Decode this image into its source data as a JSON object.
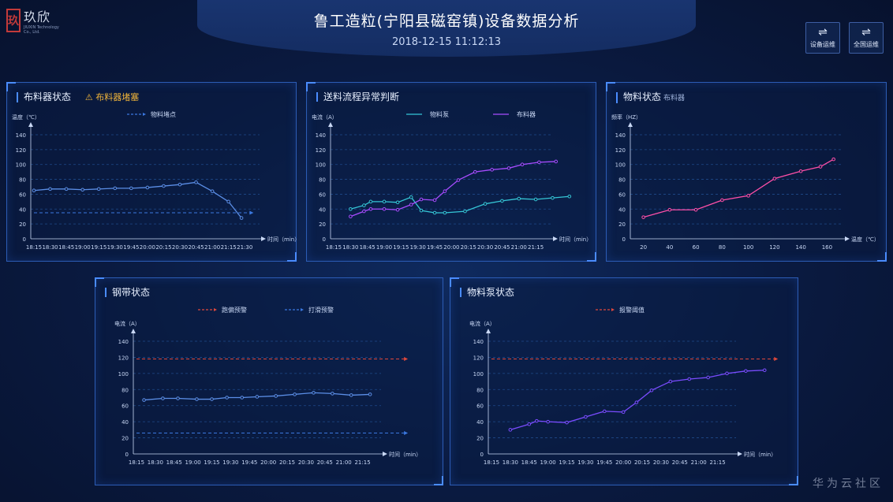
{
  "header": {
    "title": "鲁工造粒(宁阳县磁窑镇)设备数据分析",
    "datetime": "2018-12-15 11:12:13",
    "logo_name": "玖欣",
    "logo_sub": "JIUXIN Technology Co., Ltd."
  },
  "nav": {
    "device_ops": "设备运维",
    "national_ops": "全国运维",
    "swap_glyph": "⇌"
  },
  "panels": {
    "distributor": {
      "title": "布料器状态",
      "warning": "⚠ 布料器堵塞"
    },
    "feeding": {
      "title": "送料流程异常判断"
    },
    "material": {
      "title": "物料状态",
      "subtitle": "布料器"
    },
    "belt": {
      "title": "钢带状态"
    },
    "pump": {
      "title": "物料泵状态"
    }
  },
  "watermark": "华为云社区",
  "colors": {
    "cyan": "#35c6d6",
    "purple": "#a84cff",
    "pink": "#ff4fa8",
    "blue_line": "#5b8ee6",
    "red_dash": "#e0483c",
    "blue_dash": "#3b78e0",
    "grid": "#1f4a8a",
    "axis": "#c9d8f5"
  },
  "chart_data": [
    {
      "id": "distributor",
      "type": "line",
      "ylabel": "温度（℃）",
      "xlabel": "时间（min）",
      "ylim": [
        0,
        140
      ],
      "yticks": [
        0,
        20,
        40,
        60,
        80,
        100,
        120,
        140
      ],
      "categories": [
        "18:15",
        "18:30",
        "18:45",
        "19:00",
        "19:15",
        "19:30",
        "19:45",
        "20:00",
        "20:15",
        "20:30",
        "20:45",
        "21:00",
        "21:15",
        "21:30"
      ],
      "series": [
        {
          "name": "",
          "color": "#5b8ee6",
          "dashed": false,
          "x": [
            0,
            1,
            2,
            3,
            4,
            5,
            6,
            7,
            8,
            9,
            10,
            11,
            12,
            12.8
          ],
          "values": [
            65,
            67,
            67,
            66,
            67,
            68,
            68,
            69,
            71,
            73,
            76,
            64,
            50,
            28
          ]
        },
        {
          "name": "物料堵点",
          "color": "#3b78e0",
          "dashed": true,
          "x": [
            0,
            13.3
          ],
          "values": [
            35,
            35
          ]
        }
      ],
      "legend": [
        {
          "name": "物料堵点",
          "color": "#3b78e0",
          "dashed": true
        }
      ]
    },
    {
      "id": "feeding",
      "type": "line",
      "ylabel": "电流（A）",
      "xlabel": "时间（min）",
      "ylim": [
        0,
        140
      ],
      "yticks": [
        0,
        20,
        40,
        60,
        80,
        100,
        120,
        140
      ],
      "categories": [
        "18:15",
        "18:30",
        "18:45",
        "19:00",
        "19:15",
        "19:30",
        "19:45",
        "20:00",
        "20:15",
        "20:30",
        "20:45",
        "21:00",
        "21:15"
      ],
      "series": [
        {
          "name": "物料泵",
          "color": "#35c6d6",
          "x": [
            1,
            1.8,
            2.2,
            3,
            3.8,
            4.6,
            5.2,
            6,
            6.6,
            7.8,
            9,
            10,
            11,
            12,
            13,
            14
          ],
          "values": [
            40,
            45,
            50,
            50,
            49,
            56,
            38,
            35,
            35,
            37,
            47,
            51,
            54,
            53,
            55,
            57
          ]
        },
        {
          "name": "布料器",
          "color": "#a84cff",
          "x": [
            1,
            1.8,
            2.2,
            3,
            3.8,
            4.6,
            5.2,
            6,
            6.6,
            7.4,
            8.4,
            9.4,
            10.4,
            11.2,
            12.2,
            13.2
          ],
          "values": [
            30,
            37,
            40,
            40,
            39,
            46,
            53,
            52,
            64,
            79,
            90,
            93,
            95,
            100,
            103,
            104
          ]
        }
      ],
      "legend": [
        {
          "name": "物料泵",
          "color": "#35c6d6"
        },
        {
          "name": "布料器",
          "color": "#a84cff"
        }
      ]
    },
    {
      "id": "material",
      "type": "line",
      "ylabel": "频率（HZ）",
      "xlabel": "温度（℃）",
      "ylim": [
        0,
        140
      ],
      "yticks": [
        0,
        20,
        40,
        60,
        80,
        100,
        120,
        140
      ],
      "xlim": [
        10,
        170
      ],
      "xticks": [
        20,
        40,
        60,
        80,
        100,
        120,
        140,
        160
      ],
      "series": [
        {
          "name": "",
          "color": "#ff4fa8",
          "x": [
            20,
            40,
            60,
            80,
            100,
            120,
            140,
            155,
            165
          ],
          "values": [
            29,
            39,
            39,
            52,
            58,
            81,
            91,
            97,
            107
          ]
        }
      ]
    },
    {
      "id": "belt",
      "type": "line",
      "ylabel": "电流（A）",
      "xlabel": "时间（min）",
      "ylim": [
        0,
        140
      ],
      "yticks": [
        0,
        20,
        40,
        60,
        80,
        100,
        120,
        140
      ],
      "categories": [
        "18:15",
        "18:30",
        "18:45",
        "19:00",
        "19:15",
        "19:30",
        "19:45",
        "20:00",
        "20:15",
        "20:30",
        "20:45",
        "21:00",
        "21:15"
      ],
      "series": [
        {
          "name": "",
          "color": "#5b8ee6",
          "x": [
            0.4,
            1.4,
            2.2,
            3.2,
            4,
            4.8,
            5.6,
            6.4,
            7.4,
            8.4,
            9.4,
            10.4,
            11.4,
            12.4
          ],
          "values": [
            67,
            69,
            69,
            68,
            68,
            70,
            70,
            71,
            72,
            74,
            76,
            75,
            73,
            74
          ]
        },
        {
          "name": "跑偏预警",
          "color": "#e0483c",
          "dashed": true,
          "x": [
            0,
            14.2
          ],
          "values": [
            118,
            118
          ]
        },
        {
          "name": "打滑预警",
          "color": "#3b78e0",
          "dashed": true,
          "x": [
            0,
            14.2
          ],
          "values": [
            26,
            26
          ]
        }
      ],
      "legend": [
        {
          "name": "跑偏预警",
          "color": "#e0483c",
          "dashed": true
        },
        {
          "name": "打滑预警",
          "color": "#3b78e0",
          "dashed": true
        }
      ]
    },
    {
      "id": "pump",
      "type": "line",
      "ylabel": "电流（A）",
      "xlabel": "时间（min）",
      "ylim": [
        0,
        140
      ],
      "yticks": [
        0,
        20,
        40,
        60,
        80,
        100,
        120,
        140
      ],
      "categories": [
        "18:15",
        "18:30",
        "18:45",
        "19:00",
        "19:15",
        "19:30",
        "19:45",
        "20:00",
        "20:15",
        "20:30",
        "20:45",
        "21:00",
        "21:15"
      ],
      "series": [
        {
          "name": "",
          "color": "#7a4cff",
          "x": [
            1,
            2,
            2.4,
            3,
            4,
            5,
            6,
            7,
            7.7,
            8.5,
            9.5,
            10.5,
            11.5,
            12.5,
            13.5,
            14.5
          ],
          "values": [
            30,
            37,
            41,
            40,
            39,
            46,
            53,
            52,
            64,
            79,
            90,
            93,
            95,
            100,
            103,
            104
          ]
        },
        {
          "name": "报警阈值",
          "color": "#e0483c",
          "dashed": true,
          "x": [
            0,
            15
          ],
          "values": [
            118,
            118
          ]
        }
      ],
      "legend": [
        {
          "name": "报警阈值",
          "color": "#e0483c",
          "dashed": true
        }
      ]
    }
  ]
}
